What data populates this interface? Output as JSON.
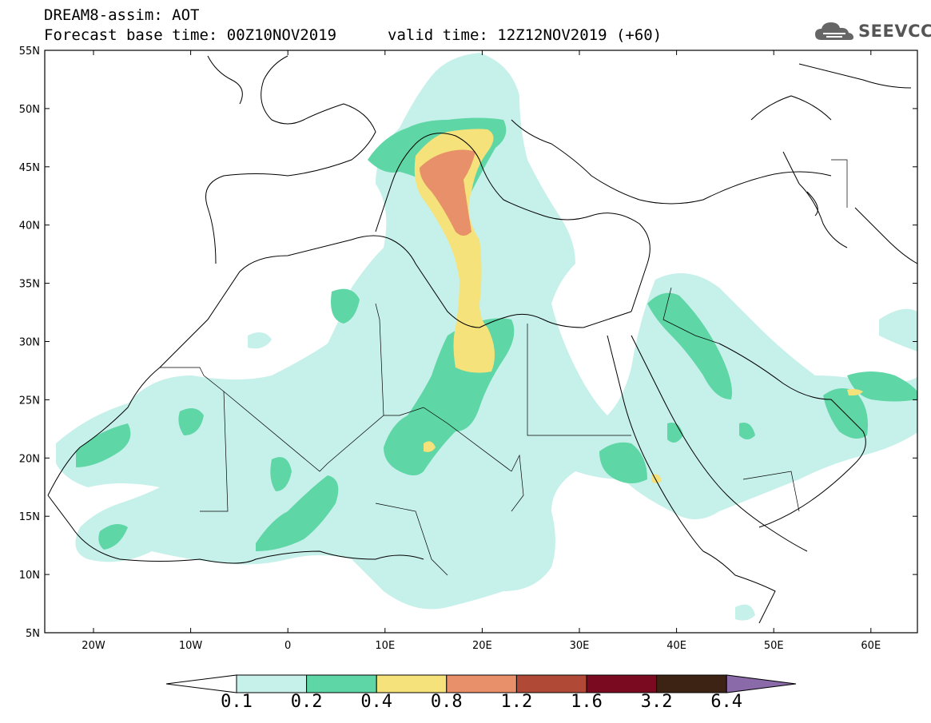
{
  "header": {
    "title": "DREAM8-assim: AOT",
    "base_time": "Forecast base time: 00Z10NOV2019",
    "valid_time": "valid time: 12Z12NOV2019 (+60)"
  },
  "logo": {
    "text": "SEEVCCC",
    "icon": "cloud-icon"
  },
  "axes": {
    "lat_labels": [
      "55N",
      "50N",
      "45N",
      "40N",
      "35N",
      "30N",
      "25N",
      "20N",
      "15N",
      "10N",
      "5N"
    ],
    "lon_labels": [
      "20W",
      "10W",
      "0",
      "10E",
      "20E",
      "30E",
      "40E",
      "50E",
      "60E"
    ]
  },
  "colorbar": {
    "labels": [
      "0.1",
      "0.2",
      "0.4",
      "0.8",
      "1.2",
      "1.6",
      "3.2",
      "6.4"
    ],
    "colors": [
      "#ffffff",
      "#c6f0ea",
      "#5ed6a6",
      "#f5e27a",
      "#e8906a",
      "#b04a36",
      "#7a0a20",
      "#3c2314",
      "#8a6aa8"
    ]
  }
}
